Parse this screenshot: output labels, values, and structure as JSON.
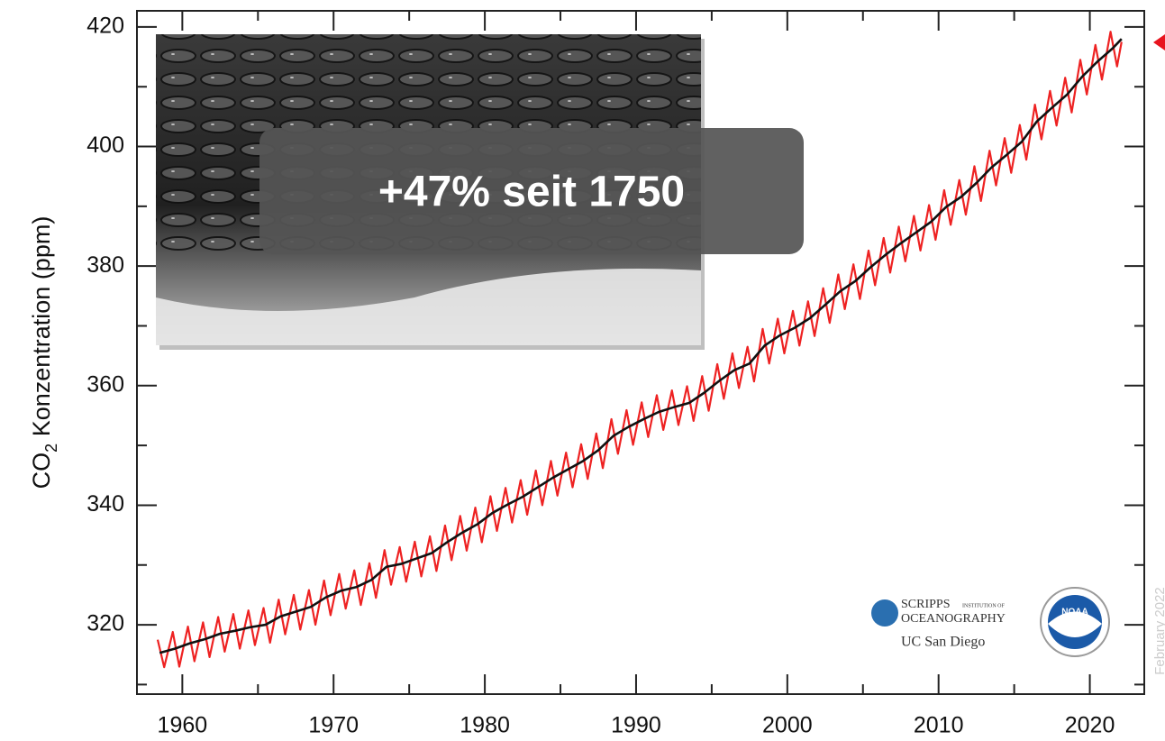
{
  "chart_data": {
    "type": "line",
    "ylabel": {
      "base": "CO",
      "sub": "2",
      "rest": " Konzentration (ppm)"
    },
    "annotation": "+47% seit 1750",
    "logos": {
      "scripps": "SCRIPPS",
      "institution": "INSTITUTION OF",
      "oceanography": "OCEANOGRAPHY",
      "ucsd": "UC San Diego",
      "noaa": "NOAA"
    },
    "date_note": "February 2022",
    "xlim": [
      1957,
      2023.6
    ],
    "ylim": [
      308.4,
      422.7
    ],
    "xticks": [
      1960,
      1970,
      1980,
      1990,
      2000,
      2010,
      2020
    ],
    "xminor": [
      1965,
      1975,
      1985,
      1995,
      2005,
      2015
    ],
    "yticks": [
      320,
      340,
      360,
      380,
      400,
      420
    ],
    "yminor": [
      310,
      330,
      350,
      370,
      390,
      410
    ],
    "series": [
      {
        "color": "#ee2222",
        "x": [
          1958.37,
          1958.8,
          1959.37,
          1959.8,
          1960.37,
          1960.8,
          1961.37,
          1961.8,
          1962.37,
          1962.8,
          1963.37,
          1963.8,
          1964.37,
          1964.8,
          1965.37,
          1965.8,
          1966.37,
          1966.8,
          1967.37,
          1967.8,
          1968.37,
          1968.8,
          1969.37,
          1969.8,
          1970.37,
          1970.8,
          1971.37,
          1971.8,
          1972.37,
          1972.8,
          1973.37,
          1973.8,
          1974.37,
          1974.8,
          1975.37,
          1975.8,
          1976.37,
          1976.8,
          1977.37,
          1977.8,
          1978.37,
          1978.8,
          1979.37,
          1979.8,
          1980.37,
          1980.8,
          1981.37,
          1981.8,
          1982.37,
          1982.8,
          1983.37,
          1983.8,
          1984.37,
          1984.8,
          1985.37,
          1985.8,
          1986.37,
          1986.8,
          1987.37,
          1987.8,
          1988.37,
          1988.8,
          1989.37,
          1989.8,
          1990.37,
          1990.8,
          1991.37,
          1991.8,
          1992.37,
          1992.8,
          1993.37,
          1993.8,
          1994.37,
          1994.8,
          1995.37,
          1995.8,
          1996.37,
          1996.8,
          1997.37,
          1997.8,
          1998.37,
          1998.8,
          1999.37,
          1999.8,
          2000.37,
          2000.8,
          2001.37,
          2001.8,
          2002.37,
          2002.8,
          2003.37,
          2003.8,
          2004.37,
          2004.8,
          2005.37,
          2005.8,
          2006.37,
          2006.8,
          2007.37,
          2007.8,
          2008.37,
          2008.8,
          2009.37,
          2009.8,
          2010.37,
          2010.8,
          2011.37,
          2011.8,
          2012.37,
          2012.8,
          2013.37,
          2013.8,
          2014.37,
          2014.8,
          2015.37,
          2015.8,
          2016.37,
          2016.8,
          2017.37,
          2017.8,
          2018.37,
          2018.8,
          2019.37,
          2019.8,
          2020.37,
          2020.8,
          2021.37,
          2021.8,
          2022.1
        ],
        "values": [
          317.5,
          312.9,
          318.8,
          313.0,
          319.7,
          313.9,
          320.4,
          314.6,
          321.3,
          315.5,
          321.8,
          316.0,
          322.4,
          316.6,
          322.8,
          317.0,
          324.2,
          318.4,
          325.0,
          319.2,
          325.8,
          320.0,
          327.4,
          321.6,
          328.5,
          322.7,
          329.1,
          323.3,
          330.3,
          324.5,
          332.5,
          326.7,
          333.0,
          327.2,
          333.9,
          328.1,
          334.8,
          329.0,
          336.6,
          330.8,
          338.2,
          332.4,
          339.6,
          333.8,
          341.5,
          335.7,
          342.9,
          337.1,
          344.2,
          338.4,
          345.8,
          340.0,
          347.4,
          341.6,
          348.8,
          343.0,
          350.2,
          344.4,
          352.0,
          346.2,
          354.4,
          348.6,
          355.9,
          350.1,
          357.2,
          351.4,
          358.4,
          352.6,
          359.2,
          353.4,
          359.9,
          354.1,
          361.6,
          355.8,
          363.6,
          357.8,
          365.4,
          359.6,
          366.5,
          360.7,
          369.5,
          363.7,
          371.2,
          365.4,
          372.5,
          366.7,
          374.1,
          368.3,
          376.3,
          370.5,
          378.6,
          372.8,
          380.3,
          374.5,
          382.6,
          376.8,
          384.7,
          378.9,
          386.6,
          380.8,
          388.4,
          382.6,
          390.2,
          384.4,
          392.7,
          386.9,
          394.4,
          388.6,
          396.7,
          390.9,
          399.3,
          393.5,
          401.4,
          395.6,
          403.6,
          397.8,
          407.0,
          401.2,
          409.3,
          403.5,
          411.5,
          405.7,
          414.5,
          408.7,
          417.0,
          411.2,
          419.2,
          413.4,
          417.5
        ]
      },
      {
        "color": "#111111",
        "x": [
          1958.5,
          1959.5,
          1960.5,
          1961.5,
          1962.5,
          1963.5,
          1964.5,
          1965.5,
          1966.5,
          1967.5,
          1968.5,
          1969.5,
          1970.5,
          1971.5,
          1972.5,
          1973.5,
          1974.5,
          1975.5,
          1976.5,
          1977.5,
          1978.5,
          1979.5,
          1980.5,
          1981.5,
          1982.5,
          1983.5,
          1984.5,
          1985.5,
          1986.5,
          1987.5,
          1988.5,
          1989.5,
          1990.5,
          1991.5,
          1992.5,
          1993.5,
          1994.5,
          1995.5,
          1996.5,
          1997.5,
          1998.5,
          1999.5,
          2000.5,
          2001.5,
          2002.5,
          2003.5,
          2004.5,
          2005.5,
          2006.5,
          2007.5,
          2008.5,
          2009.5,
          2010.5,
          2011.5,
          2012.5,
          2013.5,
          2014.5,
          2015.5,
          2016.5,
          2017.5,
          2018.5,
          2019.5,
          2020.5,
          2021.5,
          2022.1
        ],
        "values": [
          315.3,
          316.0,
          316.9,
          317.6,
          318.5,
          319.0,
          319.6,
          320.0,
          321.4,
          322.2,
          323.0,
          324.6,
          325.7,
          326.3,
          327.5,
          329.7,
          330.2,
          331.1,
          332.0,
          333.8,
          335.4,
          336.8,
          338.7,
          340.1,
          341.4,
          343.0,
          344.6,
          346.0,
          347.4,
          349.2,
          351.6,
          353.1,
          354.4,
          355.6,
          356.4,
          357.1,
          358.8,
          360.8,
          362.6,
          363.7,
          366.7,
          368.4,
          369.7,
          371.3,
          373.5,
          375.8,
          377.5,
          379.8,
          381.9,
          383.8,
          385.6,
          387.4,
          389.9,
          391.6,
          393.9,
          396.5,
          398.6,
          400.8,
          404.2,
          406.5,
          408.7,
          411.7,
          414.2,
          416.4,
          418.0
        ]
      }
    ]
  }
}
